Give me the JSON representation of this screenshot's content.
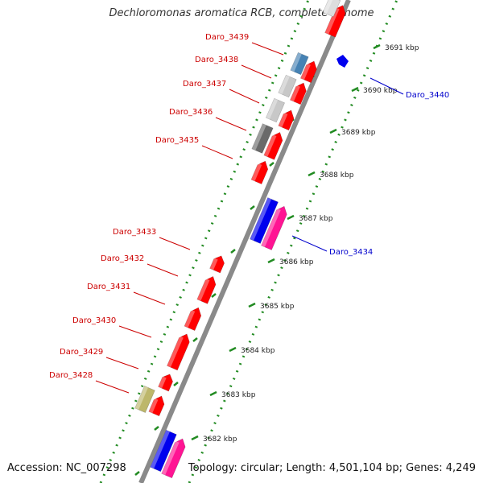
{
  "title": "Dechloromonas aromatica RCB, complete genome",
  "footer": {
    "accession": "Accession: NC_007298",
    "summary": "Topology: circular; Length: 4,501,104 bp; Genes: 4,249"
  },
  "colors": {
    "backbone": "#8a8a8a",
    "red": "#ff0000",
    "blue": "#0000ee",
    "magenta": "#ff1493",
    "steelblue": "#4682b4",
    "lightgray": "#c8c8c8",
    "darkgray": "#6a6a6a",
    "khaki": "#bdb76b",
    "tick": "#228b22",
    "label_red": "#cc0000",
    "label_blue": "#0000cc"
  },
  "scale": {
    "ticks": [
      "3682 kbp",
      "3683 kbp",
      "3684 kbp",
      "3685 kbp",
      "3686 kbp",
      "3687 kbp",
      "3688 kbp",
      "3689 kbp",
      "3690 kbp",
      "3691 kbp"
    ]
  },
  "gene_labels_left": [
    "Daro_3439",
    "Daro_3438",
    "Daro_3437",
    "Daro_3436",
    "Daro_3435",
    "Daro_3433",
    "Daro_3432",
    "Daro_3431",
    "Daro_3430",
    "Daro_3429",
    "Daro_3428"
  ],
  "gene_labels_right": [
    "Daro_3440",
    "Daro_3434"
  ]
}
